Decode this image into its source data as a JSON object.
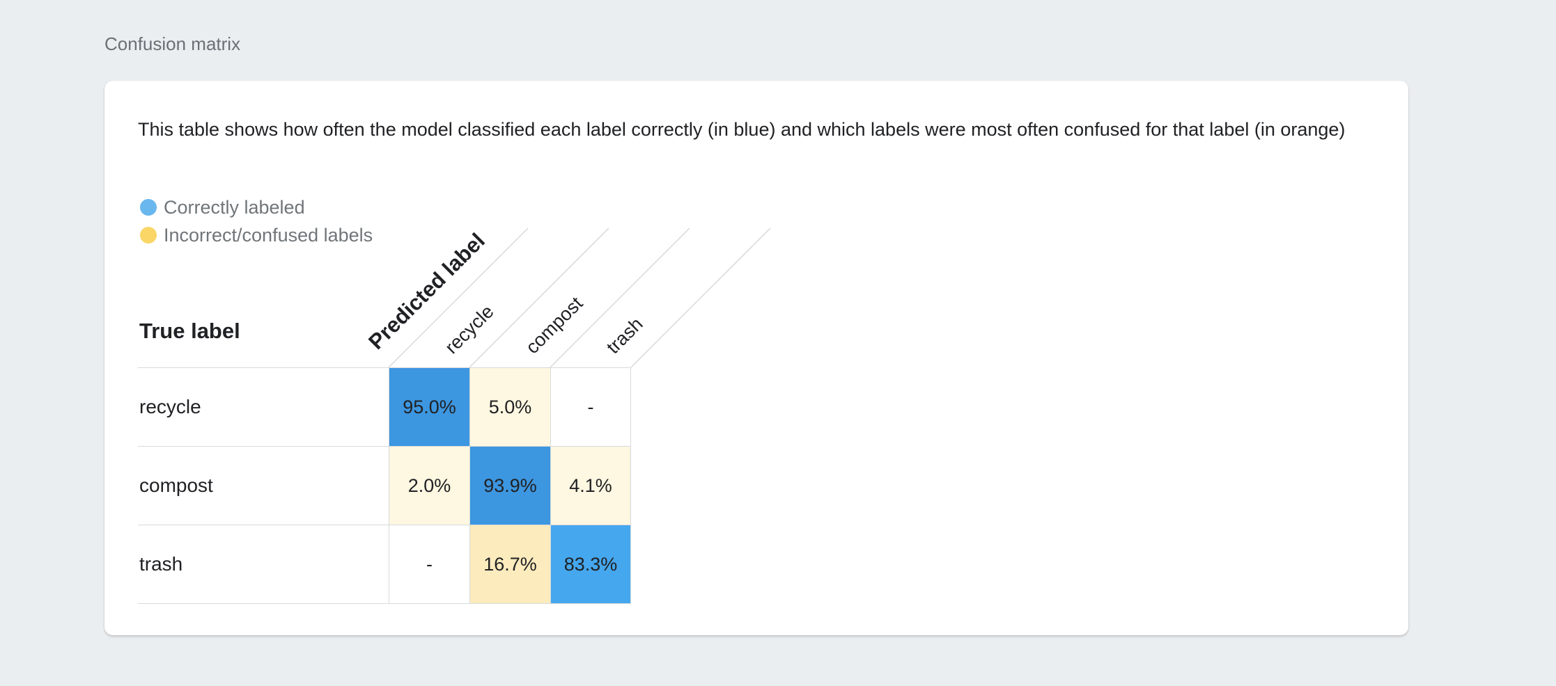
{
  "section_title": "Confusion matrix",
  "description": "This table shows how often the model classified each label correctly (in blue) and which labels were most often confused for that label (in orange)",
  "legend": [
    {
      "label": "Correctly labeled",
      "color": "#6ab7ee"
    },
    {
      "label": "Incorrect/confused labels",
      "color": "#fad666"
    }
  ],
  "axis": {
    "true_label": "True label",
    "predicted_label": "Predicted label"
  },
  "columns": [
    "recycle",
    "compost",
    "trash"
  ],
  "rows": [
    {
      "label": "recycle",
      "cells": [
        {
          "text": "95.0%",
          "color": "#3d96e0"
        },
        {
          "text": "5.0%",
          "color": "#fef7e1"
        },
        {
          "text": "-",
          "color": "#ffffff"
        }
      ]
    },
    {
      "label": "compost",
      "cells": [
        {
          "text": "2.0%",
          "color": "#fef7e1"
        },
        {
          "text": "93.9%",
          "color": "#3d96e0"
        },
        {
          "text": "4.1%",
          "color": "#fef7e1"
        }
      ]
    },
    {
      "label": "trash",
      "cells": [
        {
          "text": "-",
          "color": "#ffffff"
        },
        {
          "text": "16.7%",
          "color": "#fcebbd"
        },
        {
          "text": "83.3%",
          "color": "#45a7ee"
        }
      ]
    }
  ]
}
